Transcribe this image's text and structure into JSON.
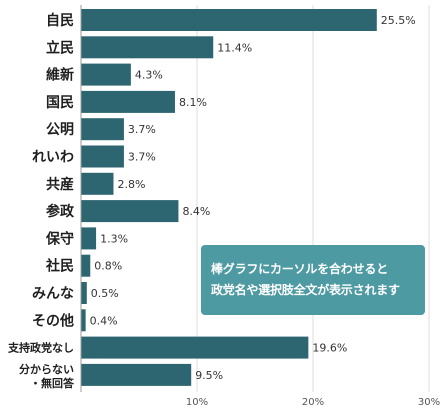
{
  "chart_data": {
    "type": "bar",
    "orientation": "horizontal",
    "categories": [
      "自民",
      "立民",
      "維新",
      "国民",
      "公明",
      "れいわ",
      "共産",
      "参政",
      "保守",
      "社民",
      "みんな",
      "その他",
      "支持政党なし",
      "分からない・無回答"
    ],
    "category_lines": [
      [
        "自民"
      ],
      [
        "立民"
      ],
      [
        "維新"
      ],
      [
        "国民"
      ],
      [
        "公明"
      ],
      [
        "れいわ"
      ],
      [
        "共産"
      ],
      [
        "参政"
      ],
      [
        "保守"
      ],
      [
        "社民"
      ],
      [
        "みんな"
      ],
      [
        "その他"
      ],
      [
        "支持政党なし"
      ],
      [
        "分からない",
        "・無回答"
      ]
    ],
    "values": [
      25.5,
      11.4,
      4.3,
      8.1,
      3.7,
      3.7,
      2.8,
      8.4,
      1.3,
      0.8,
      0.5,
      0.4,
      19.6,
      9.5
    ],
    "value_labels": [
      "25.5%",
      "11.4%",
      "4.3%",
      "8.1%",
      "3.7%",
      "3.7%",
      "2.8%",
      "8.4%",
      "1.3%",
      "0.8%",
      "0.5%",
      "0.4%",
      "19.6%",
      "9.5%"
    ],
    "xlim": [
      0,
      30
    ],
    "x_ticks": [
      10,
      20,
      30
    ],
    "x_tick_labels": [
      "10%",
      "20%",
      "30%"
    ],
    "grid": true,
    "bar_color": "#2d6671",
    "grid_color": "#dddddd"
  },
  "tooltip": {
    "line1": "棒グラフにカーソルを合わせると",
    "line2": "政党名や選択肢全文が表示されます",
    "color": "#4d9aa3"
  }
}
